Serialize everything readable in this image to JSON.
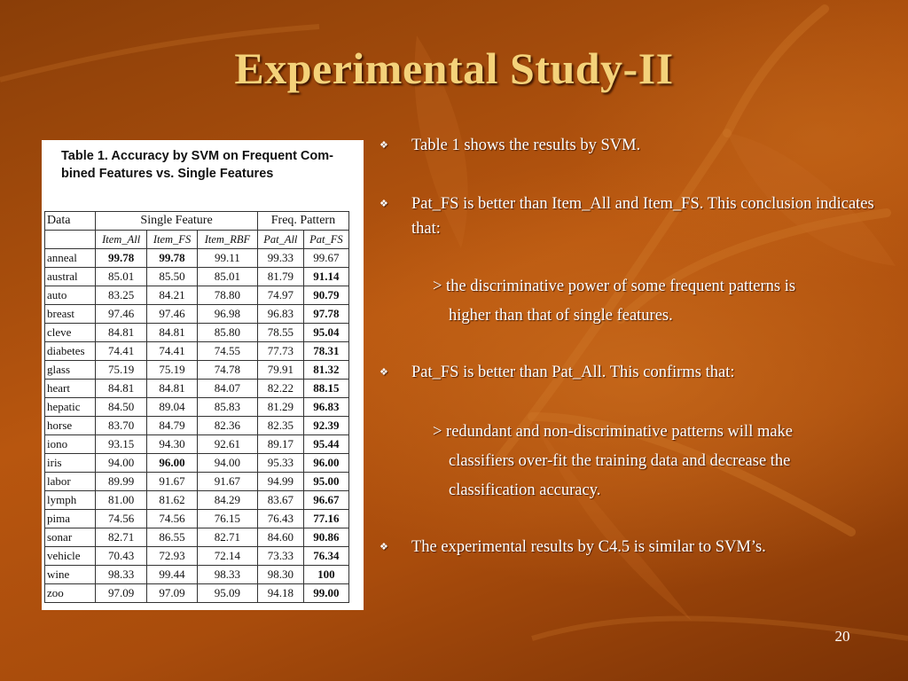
{
  "slide": {
    "title": "Experimental Study-II",
    "page_number": "20"
  },
  "table": {
    "caption": "Table 1. Accuracy by SVM on Frequent Com- bined Features vs. Single Features",
    "header1": {
      "data": "Data",
      "single": "Single Feature",
      "freq": "Freq.  Pattern"
    },
    "header2": [
      "Item_All",
      "Item_FS",
      "Item_RBF",
      "Pat_All",
      "Pat_FS"
    ],
    "rows": [
      {
        "name": "anneal",
        "v": [
          "99.78",
          "99.78",
          "99.11",
          "99.33",
          "99.67"
        ],
        "bold": [
          true,
          true,
          false,
          false,
          false
        ]
      },
      {
        "name": "austral",
        "v": [
          "85.01",
          "85.50",
          "85.01",
          "81.79",
          "91.14"
        ],
        "bold": [
          false,
          false,
          false,
          false,
          true
        ]
      },
      {
        "name": "auto",
        "v": [
          "83.25",
          "84.21",
          "78.80",
          "74.97",
          "90.79"
        ],
        "bold": [
          false,
          false,
          false,
          false,
          true
        ]
      },
      {
        "name": "breast",
        "v": [
          "97.46",
          "97.46",
          "96.98",
          "96.83",
          "97.78"
        ],
        "bold": [
          false,
          false,
          false,
          false,
          true
        ]
      },
      {
        "name": "cleve",
        "v": [
          "84.81",
          "84.81",
          "85.80",
          "78.55",
          "95.04"
        ],
        "bold": [
          false,
          false,
          false,
          false,
          true
        ]
      },
      {
        "name": "diabetes",
        "v": [
          "74.41",
          "74.41",
          "74.55",
          "77.73",
          "78.31"
        ],
        "bold": [
          false,
          false,
          false,
          false,
          true
        ]
      },
      {
        "name": "glass",
        "v": [
          "75.19",
          "75.19",
          "74.78",
          "79.91",
          "81.32"
        ],
        "bold": [
          false,
          false,
          false,
          false,
          true
        ]
      },
      {
        "name": "heart",
        "v": [
          "84.81",
          "84.81",
          "84.07",
          "82.22",
          "88.15"
        ],
        "bold": [
          false,
          false,
          false,
          false,
          true
        ]
      },
      {
        "name": "hepatic",
        "v": [
          "84.50",
          "89.04",
          "85.83",
          "81.29",
          "96.83"
        ],
        "bold": [
          false,
          false,
          false,
          false,
          true
        ]
      },
      {
        "name": "horse",
        "v": [
          "83.70",
          "84.79",
          "82.36",
          "82.35",
          "92.39"
        ],
        "bold": [
          false,
          false,
          false,
          false,
          true
        ]
      },
      {
        "name": "iono",
        "v": [
          "93.15",
          "94.30",
          "92.61",
          "89.17",
          "95.44"
        ],
        "bold": [
          false,
          false,
          false,
          false,
          true
        ]
      },
      {
        "name": "iris",
        "v": [
          "94.00",
          "96.00",
          "94.00",
          "95.33",
          "96.00"
        ],
        "bold": [
          false,
          true,
          false,
          false,
          true
        ]
      },
      {
        "name": "labor",
        "v": [
          "89.99",
          "91.67",
          "91.67",
          "94.99",
          "95.00"
        ],
        "bold": [
          false,
          false,
          false,
          false,
          true
        ]
      },
      {
        "name": "lymph",
        "v": [
          "81.00",
          "81.62",
          "84.29",
          "83.67",
          "96.67"
        ],
        "bold": [
          false,
          false,
          false,
          false,
          true
        ]
      },
      {
        "name": "pima",
        "v": [
          "74.56",
          "74.56",
          "76.15",
          "76.43",
          "77.16"
        ],
        "bold": [
          false,
          false,
          false,
          false,
          true
        ]
      },
      {
        "name": "sonar",
        "v": [
          "82.71",
          "86.55",
          "82.71",
          "84.60",
          "90.86"
        ],
        "bold": [
          false,
          false,
          false,
          false,
          true
        ]
      },
      {
        "name": "vehicle",
        "v": [
          "70.43",
          "72.93",
          "72.14",
          "73.33",
          "76.34"
        ],
        "bold": [
          false,
          false,
          false,
          false,
          true
        ]
      },
      {
        "name": "wine",
        "v": [
          "98.33",
          "99.44",
          "98.33",
          "98.30",
          "100"
        ],
        "bold": [
          false,
          false,
          false,
          false,
          true
        ]
      },
      {
        "name": "zoo",
        "v": [
          "97.09",
          "97.09",
          "95.09",
          "94.18",
          "99.00"
        ],
        "bold": [
          false,
          false,
          false,
          false,
          true
        ]
      }
    ]
  },
  "bullets": {
    "b1": "Table 1 shows the results by SVM.",
    "b2": "Pat_FS is better than Item_All and Item_FS. This conclusion indicates that:",
    "b2_sub_line1": "> the discriminative power of some frequent patterns is",
    "b2_sub_line2": "higher than that of single features.",
    "b3": "Pat_FS is better than Pat_All. This confirms that:",
    "b3_sub_line1": "> redundant and non-discriminative patterns will make",
    "b3_sub_line2": "classifiers over-fit the training data and decrease the",
    "b3_sub_line3": "classification accuracy.",
    "b4": "The experimental results by C4.5 is similar to SVM’s."
  },
  "icons": {
    "bullet": "diamond-bullet-icon"
  },
  "colors": {
    "title": "#f4d27a",
    "text": "#ffffff",
    "background": "#a94c0c"
  }
}
